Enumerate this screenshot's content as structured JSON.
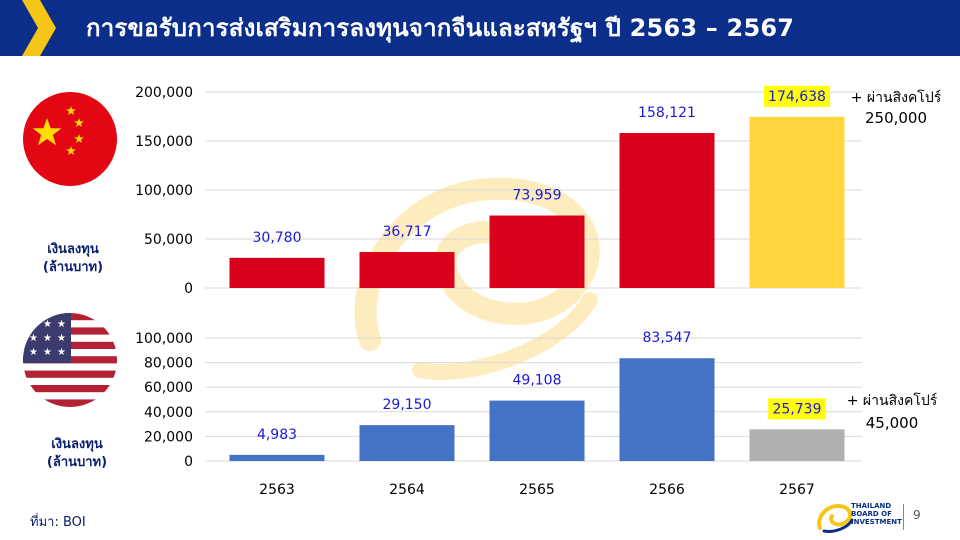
{
  "header": {
    "title": "การขอรับการส่งเสริมการลงทุนจากจีนและสหรัฐฯ ปี 2563 – 2567"
  },
  "units_label": {
    "line1": "เงินลงทุน",
    "line2": "(ล้านบาท)"
  },
  "footer": {
    "source": "ที่มา: BOI",
    "page_number": "9",
    "logo_text": [
      "THAILAND",
      "BOARD OF",
      "INVESTMENT"
    ]
  },
  "colors": {
    "header_bg": "#0b2e8a",
    "chevron": "#f5c518",
    "china_bar": "#d9001b",
    "china_highlight": "#ffd63d",
    "usa_bar": "#4472c4",
    "usa_highlight": "#b0b0b0",
    "value_label": "#1a1adc",
    "label_highlight_bg": "#ffff00"
  },
  "chart_data": [
    {
      "type": "bar",
      "categories": [
        "2563",
        "2564",
        "2565",
        "2566",
        "2567"
      ],
      "values": [
        30780,
        36717,
        73959,
        158121,
        174638
      ],
      "value_labels": [
        "30,780",
        "36,717",
        "73,959",
        "158,121",
        "174,638"
      ],
      "highlight_index": 4,
      "ylim": [
        0,
        200000
      ],
      "yticks": [
        0,
        50000,
        100000,
        150000,
        200000
      ],
      "ytick_labels": [
        "0",
        "50,000",
        "100,000",
        "150,000",
        "200,000"
      ],
      "grid": true,
      "ylabel": "เงินลงทุน (ล้านบาท)",
      "annotation": {
        "line1": "+ ผ่านสิงคโปร์",
        "line2": "250,000"
      }
    },
    {
      "type": "bar",
      "categories": [
        "2563",
        "2564",
        "2565",
        "2566",
        "2567"
      ],
      "values": [
        4983,
        29150,
        49108,
        83547,
        25739
      ],
      "value_labels": [
        "4,983",
        "29,150",
        "49,108",
        "83,547",
        "25,739"
      ],
      "highlight_index": 4,
      "ylim": [
        0,
        100000
      ],
      "yticks": [
        0,
        20000,
        40000,
        60000,
        80000,
        100000
      ],
      "ytick_labels": [
        "0",
        "20,000",
        "40,000",
        "60,000",
        "80,000",
        "100,000"
      ],
      "grid": true,
      "ylabel": "เงินลงทุน (ล้านบาท)",
      "annotation": {
        "line1": "+ ผ่านสิงคโปร์",
        "line2": "45,000"
      }
    }
  ]
}
